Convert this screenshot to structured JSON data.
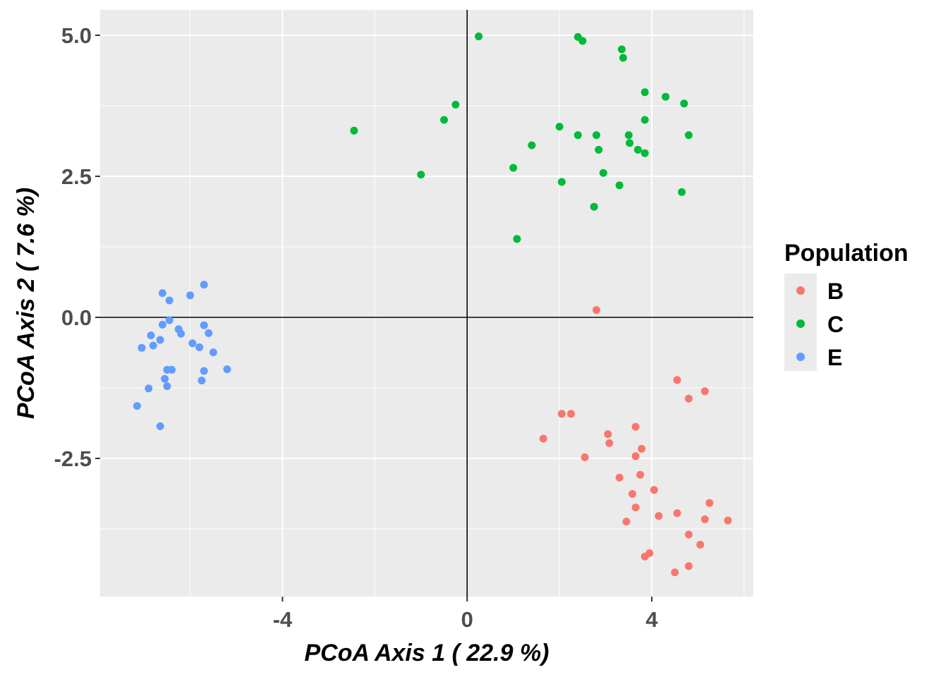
{
  "chart_data": {
    "type": "scatter",
    "xlabel": "PCoA Axis 1 ( 22.9 %)",
    "ylabel": "PCoA Axis 2 ( 7.6 %)",
    "xlim": [
      -7.95,
      6.2
    ],
    "ylim": [
      -4.95,
      5.45
    ],
    "x_ticks": [
      -4,
      0,
      4
    ],
    "x_tick_labels": [
      "-4",
      "0",
      "4"
    ],
    "y_ticks": [
      5.0,
      2.5,
      0.0,
      -2.5
    ],
    "y_tick_labels": [
      "5.0",
      "2.5",
      "0.0",
      "-2.5"
    ],
    "reference_lines": {
      "x": 0,
      "y": 0
    },
    "grid": true,
    "legend": {
      "title": "Population",
      "position": "right"
    },
    "series": [
      {
        "name": "B",
        "color": "#F8766D",
        "points": [
          [
            2.8,
            0.13
          ],
          [
            4.55,
            -1.11
          ],
          [
            5.15,
            -1.31
          ],
          [
            4.8,
            -1.44
          ],
          [
            2.05,
            -1.71
          ],
          [
            2.25,
            -1.71
          ],
          [
            3.65,
            -1.94
          ],
          [
            3.05,
            -2.07
          ],
          [
            1.65,
            -2.15
          ],
          [
            3.08,
            -2.23
          ],
          [
            3.78,
            -2.33
          ],
          [
            3.65,
            -2.46
          ],
          [
            2.55,
            -2.48
          ],
          [
            3.75,
            -2.79
          ],
          [
            3.3,
            -2.84
          ],
          [
            4.05,
            -3.06
          ],
          [
            3.58,
            -3.13
          ],
          [
            5.25,
            -3.29
          ],
          [
            3.65,
            -3.37
          ],
          [
            4.55,
            -3.47
          ],
          [
            4.15,
            -3.52
          ],
          [
            5.15,
            -3.58
          ],
          [
            5.65,
            -3.6
          ],
          [
            3.45,
            -3.62
          ],
          [
            4.8,
            -3.85
          ],
          [
            5.05,
            -4.03
          ],
          [
            3.95,
            -4.18
          ],
          [
            3.85,
            -4.24
          ],
          [
            4.8,
            -4.41
          ],
          [
            4.5,
            -4.52
          ]
        ]
      },
      {
        "name": "C",
        "color": "#00BA38",
        "points": [
          [
            0.25,
            4.98
          ],
          [
            2.4,
            4.97
          ],
          [
            2.5,
            4.9
          ],
          [
            3.35,
            4.75
          ],
          [
            3.38,
            4.6
          ],
          [
            3.85,
            3.99
          ],
          [
            4.3,
            3.91
          ],
          [
            4.7,
            3.79
          ],
          [
            -0.25,
            3.77
          ],
          [
            -0.5,
            3.5
          ],
          [
            3.85,
            3.5
          ],
          [
            2.0,
            3.38
          ],
          [
            -2.45,
            3.31
          ],
          [
            2.4,
            3.23
          ],
          [
            2.8,
            3.23
          ],
          [
            3.5,
            3.23
          ],
          [
            4.8,
            3.23
          ],
          [
            3.52,
            3.09
          ],
          [
            1.4,
            3.05
          ],
          [
            2.85,
            2.97
          ],
          [
            3.7,
            2.97
          ],
          [
            3.85,
            2.91
          ],
          [
            1.0,
            2.65
          ],
          [
            2.95,
            2.56
          ],
          [
            -1.0,
            2.53
          ],
          [
            2.05,
            2.4
          ],
          [
            3.3,
            2.34
          ],
          [
            4.65,
            2.22
          ],
          [
            2.75,
            1.96
          ],
          [
            1.08,
            1.39
          ]
        ]
      },
      {
        "name": "E",
        "color": "#619CFF",
        "points": [
          [
            -5.7,
            0.58
          ],
          [
            -6.6,
            0.43
          ],
          [
            -6.0,
            0.39
          ],
          [
            -6.45,
            0.3
          ],
          [
            -6.45,
            -0.05
          ],
          [
            -6.6,
            -0.13
          ],
          [
            -6.25,
            -0.21
          ],
          [
            -5.7,
            -0.14
          ],
          [
            -5.6,
            -0.28
          ],
          [
            -6.2,
            -0.29
          ],
          [
            -6.85,
            -0.32
          ],
          [
            -6.65,
            -0.4
          ],
          [
            -5.95,
            -0.46
          ],
          [
            -6.8,
            -0.5
          ],
          [
            -7.05,
            -0.54
          ],
          [
            -5.8,
            -0.53
          ],
          [
            -5.5,
            -0.62
          ],
          [
            -6.5,
            -0.93
          ],
          [
            -6.4,
            -0.93
          ],
          [
            -5.7,
            -0.95
          ],
          [
            -5.2,
            -0.92
          ],
          [
            -6.55,
            -1.09
          ],
          [
            -5.75,
            -1.12
          ],
          [
            -6.5,
            -1.22
          ],
          [
            -6.9,
            -1.26
          ],
          [
            -7.15,
            -1.57
          ],
          [
            -6.65,
            -1.93
          ]
        ]
      }
    ]
  }
}
